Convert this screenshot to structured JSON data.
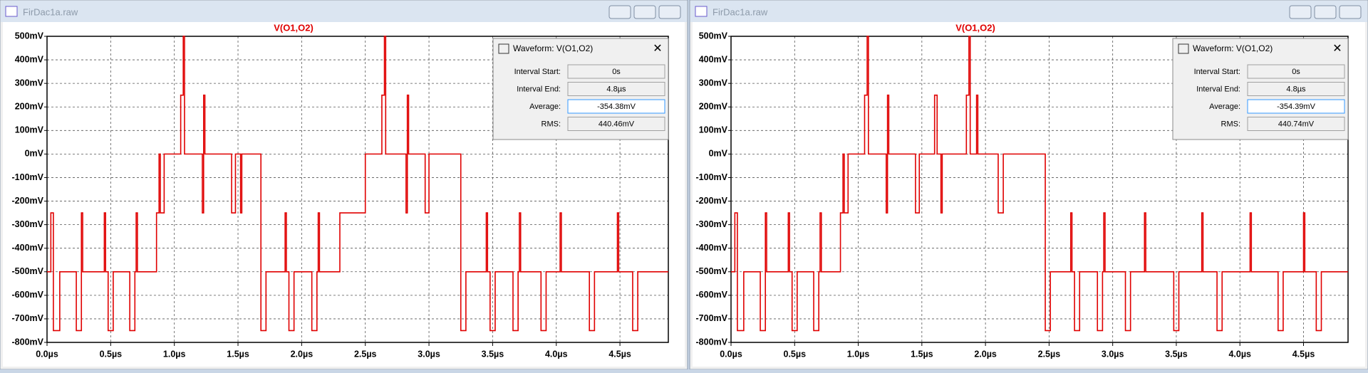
{
  "windows": [
    {
      "title": "FirDac1a.raw"
    },
    {
      "title": "FirDac1a.raw"
    }
  ],
  "dialogs": [
    {
      "title": "Waveform: V(O1,O2)",
      "fields": [
        {
          "label": "Interval Start:",
          "value": "0s"
        },
        {
          "label": "Interval End:",
          "value": "4.8µs"
        },
        {
          "label": "Average:",
          "value": "-354.38mV"
        },
        {
          "label": "RMS:",
          "value": "440.46mV"
        }
      ]
    },
    {
      "title": "Waveform: V(O1,O2)",
      "fields": [
        {
          "label": "Interval Start:",
          "value": "0s"
        },
        {
          "label": "Interval End:",
          "value": "4.8µs"
        },
        {
          "label": "Average:",
          "value": "-354.39mV"
        },
        {
          "label": "RMS:",
          "value": "440.74mV"
        }
      ]
    }
  ],
  "chart_data": [
    {
      "type": "line",
      "grid": true,
      "xlim": [
        0,
        4.88
      ],
      "ylim": [
        -800,
        500
      ],
      "xticks": [
        {
          "value": 0,
          "label": "0.0µs"
        },
        {
          "value": 0.5,
          "label": "0.5µs"
        },
        {
          "value": 1,
          "label": "1.0µs"
        },
        {
          "value": 1.5,
          "label": "1.5µs"
        },
        {
          "value": 2,
          "label": "2.0µs"
        },
        {
          "value": 2.5,
          "label": "2.5µs"
        },
        {
          "value": 3,
          "label": "3.0µs"
        },
        {
          "value": 3.5,
          "label": "3.5µs"
        },
        {
          "value": 4,
          "label": "4.0µs"
        },
        {
          "value": 4.5,
          "label": "4.5µs"
        }
      ],
      "yticks": [
        {
          "value": 500,
          "label": "500mV"
        },
        {
          "value": 400,
          "label": "400mV"
        },
        {
          "value": 300,
          "label": "300mV"
        },
        {
          "value": 200,
          "label": "200mV"
        },
        {
          "value": 100,
          "label": "100mV"
        },
        {
          "value": 0,
          "label": "0mV"
        },
        {
          "value": -100,
          "label": "-100mV"
        },
        {
          "value": -200,
          "label": "-200mV"
        },
        {
          "value": -300,
          "label": "-300mV"
        },
        {
          "value": -400,
          "label": "-400mV"
        },
        {
          "value": -500,
          "label": "-500mV"
        },
        {
          "value": -600,
          "label": "-600mV"
        },
        {
          "value": -700,
          "label": "-700mV"
        },
        {
          "value": -800,
          "label": "-800mV"
        }
      ],
      "x": [
        0,
        0.03,
        0.03,
        0.05,
        0.05,
        0.1,
        0.1,
        0.23,
        0.23,
        0.27,
        0.27,
        0.28,
        0.28,
        0.45,
        0.45,
        0.46,
        0.46,
        0.48,
        0.48,
        0.52,
        0.52,
        0.65,
        0.65,
        0.69,
        0.69,
        0.7,
        0.7,
        0.71,
        0.71,
        0.86,
        0.86,
        0.88,
        0.88,
        0.89,
        0.89,
        0.92,
        0.92,
        1.05,
        1.05,
        1.07,
        1.07,
        1.08,
        1.08,
        1.22,
        1.22,
        1.23,
        1.23,
        1.24,
        1.24,
        1.45,
        1.45,
        1.48,
        1.48,
        1.52,
        1.52,
        1.53,
        1.53,
        1.68,
        1.68,
        1.72,
        1.72,
        1.87,
        1.87,
        1.88,
        1.88,
        1.9,
        1.9,
        1.94,
        1.94,
        2.08,
        2.08,
        2.12,
        2.12,
        2.13,
        2.13,
        2.14,
        2.14,
        2.3,
        2.3,
        2.5,
        2.5,
        2.63,
        2.63,
        2.65,
        2.65,
        2.66,
        2.66,
        2.82,
        2.82,
        2.83,
        2.83,
        2.84,
        2.84,
        2.97,
        2.97,
        3.0,
        3.0,
        3.25,
        3.25,
        3.29,
        3.29,
        3.45,
        3.45,
        3.46,
        3.46,
        3.48,
        3.48,
        3.52,
        3.52,
        3.66,
        3.66,
        3.7,
        3.7,
        3.71,
        3.71,
        3.72,
        3.72,
        3.88,
        3.88,
        3.92,
        3.92,
        4.03,
        4.03,
        4.04,
        4.04,
        4.26,
        4.26,
        4.3,
        4.3,
        4.48,
        4.48,
        4.49,
        4.49,
        4.6,
        4.6,
        4.64,
        4.64,
        4.88
      ],
      "series": [
        {
          "name": "V(O1,O2)",
          "color": "#e00000",
          "values": [
            -500,
            -500,
            -250,
            -250,
            -750,
            -750,
            -500,
            -500,
            -750,
            -750,
            -250,
            -250,
            -500,
            -500,
            -250,
            -250,
            -500,
            -500,
            -750,
            -750,
            -500,
            -500,
            -750,
            -750,
            -500,
            -500,
            -250,
            -250,
            -500,
            -500,
            -250,
            -250,
            0,
            0,
            -250,
            -250,
            0,
            0,
            250,
            250,
            500,
            500,
            0,
            0,
            -250,
            -250,
            250,
            250,
            0,
            0,
            -250,
            -250,
            0,
            0,
            -250,
            -250,
            0,
            0,
            -750,
            -750,
            -500,
            -500,
            -250,
            -250,
            -500,
            -500,
            -750,
            -750,
            -500,
            -500,
            -750,
            -750,
            -500,
            -500,
            -250,
            -250,
            -500,
            -500,
            -250,
            -250,
            0,
            0,
            250,
            250,
            500,
            500,
            0,
            0,
            -250,
            -250,
            250,
            250,
            0,
            0,
            -250,
            -250,
            0,
            0,
            -750,
            -750,
            -500,
            -500,
            -250,
            -250,
            -500,
            -500,
            -750,
            -750,
            -500,
            -500,
            -750,
            -750,
            -500,
            -500,
            -250,
            -250,
            -500,
            -500,
            -750,
            -750,
            -500,
            -500,
            -250,
            -250,
            -500,
            -500,
            -750,
            -750,
            -500,
            -500,
            -250,
            -250,
            -500,
            -500,
            -750,
            -750,
            -500,
            -500
          ]
        }
      ]
    },
    {
      "type": "line",
      "grid": true,
      "xlim": [
        0,
        4.85
      ],
      "ylim": [
        -800,
        500
      ],
      "xticks": [
        {
          "value": 0,
          "label": "0.0µs"
        },
        {
          "value": 0.5,
          "label": "0.5µs"
        },
        {
          "value": 1,
          "label": "1.0µs"
        },
        {
          "value": 1.5,
          "label": "1.5µs"
        },
        {
          "value": 2,
          "label": "2.0µs"
        },
        {
          "value": 2.5,
          "label": "2.5µs"
        },
        {
          "value": 3,
          "label": "3.0µs"
        },
        {
          "value": 3.5,
          "label": "3.5µs"
        },
        {
          "value": 4,
          "label": "4.0µs"
        },
        {
          "value": 4.5,
          "label": "4.5µs"
        }
      ],
      "yticks": [
        {
          "value": 500,
          "label": "500mV"
        },
        {
          "value": 400,
          "label": "400mV"
        },
        {
          "value": 300,
          "label": "300mV"
        },
        {
          "value": 200,
          "label": "200mV"
        },
        {
          "value": 100,
          "label": "100mV"
        },
        {
          "value": 0,
          "label": "0mV"
        },
        {
          "value": -100,
          "label": "-100mV"
        },
        {
          "value": -200,
          "label": "-200mV"
        },
        {
          "value": -300,
          "label": "-300mV"
        },
        {
          "value": -400,
          "label": "-400mV"
        },
        {
          "value": -500,
          "label": "-500mV"
        },
        {
          "value": -600,
          "label": "-600mV"
        },
        {
          "value": -700,
          "label": "-700mV"
        },
        {
          "value": -800,
          "label": "-800mV"
        }
      ],
      "x": [
        0,
        0.03,
        0.03,
        0.05,
        0.05,
        0.1,
        0.1,
        0.23,
        0.23,
        0.27,
        0.27,
        0.28,
        0.28,
        0.45,
        0.45,
        0.46,
        0.46,
        0.48,
        0.48,
        0.52,
        0.52,
        0.65,
        0.65,
        0.69,
        0.69,
        0.7,
        0.7,
        0.71,
        0.71,
        0.86,
        0.86,
        0.88,
        0.88,
        0.89,
        0.89,
        0.92,
        0.92,
        1.05,
        1.05,
        1.07,
        1.07,
        1.08,
        1.08,
        1.22,
        1.22,
        1.23,
        1.23,
        1.24,
        1.24,
        1.45,
        1.45,
        1.48,
        1.48,
        1.6,
        1.6,
        1.62,
        1.62,
        1.65,
        1.65,
        1.66,
        1.66,
        1.85,
        1.85,
        1.87,
        1.87,
        1.88,
        1.88,
        1.93,
        1.93,
        1.94,
        1.94,
        2.1,
        2.1,
        2.14,
        2.14,
        2.47,
        2.47,
        2.51,
        2.51,
        2.67,
        2.67,
        2.68,
        2.68,
        2.7,
        2.7,
        2.74,
        2.74,
        2.88,
        2.88,
        2.92,
        2.92,
        2.93,
        2.93,
        2.94,
        2.94,
        3.1,
        3.1,
        3.14,
        3.14,
        3.25,
        3.25,
        3.26,
        3.26,
        3.48,
        3.48,
        3.52,
        3.52,
        3.7,
        3.7,
        3.71,
        3.71,
        3.82,
        3.82,
        3.86,
        3.86,
        4.08,
        4.08,
        4.09,
        4.09,
        4.3,
        4.3,
        4.34,
        4.34,
        4.5,
        4.5,
        4.51,
        4.51,
        4.6,
        4.6,
        4.64,
        4.64,
        4.85
      ],
      "series": [
        {
          "name": "V(O1,O2)",
          "color": "#e00000",
          "values": [
            -500,
            -500,
            -250,
            -250,
            -750,
            -750,
            -500,
            -500,
            -750,
            -750,
            -250,
            -250,
            -500,
            -500,
            -250,
            -250,
            -500,
            -500,
            -750,
            -750,
            -500,
            -500,
            -750,
            -750,
            -500,
            -500,
            -250,
            -250,
            -500,
            -500,
            -250,
            -250,
            0,
            0,
            -250,
            -250,
            0,
            0,
            250,
            250,
            500,
            500,
            0,
            0,
            -250,
            -250,
            250,
            250,
            0,
            0,
            -250,
            -250,
            0,
            0,
            250,
            250,
            0,
            0,
            -250,
            -250,
            0,
            0,
            250,
            250,
            500,
            500,
            0,
            0,
            250,
            250,
            0,
            0,
            -250,
            -250,
            0,
            0,
            -750,
            -750,
            -500,
            -500,
            -250,
            -250,
            -500,
            -500,
            -750,
            -750,
            -500,
            -500,
            -750,
            -750,
            -500,
            -500,
            -250,
            -250,
            -500,
            -500,
            -750,
            -750,
            -500,
            -500,
            -250,
            -250,
            -500,
            -500,
            -750,
            -750,
            -500,
            -500,
            -250,
            -250,
            -500,
            -500,
            -750,
            -750,
            -500,
            -500,
            -250,
            -250,
            -500,
            -500,
            -750,
            -750,
            -500,
            -500,
            -250,
            -250,
            -500,
            -500,
            -750,
            -750,
            -500,
            -500
          ]
        }
      ]
    }
  ]
}
